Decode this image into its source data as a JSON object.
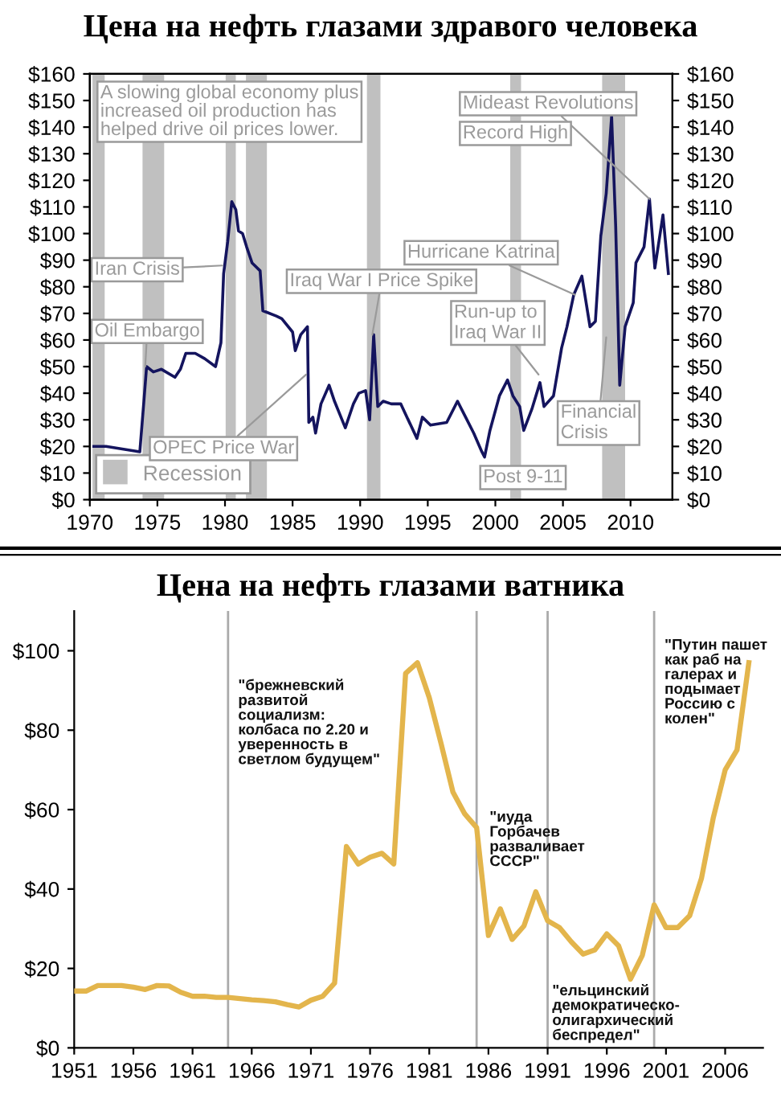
{
  "chart_data": [
    {
      "type": "line",
      "title": "Цена на нефть глазами здравого человека",
      "xlim": [
        1970,
        2013.1
      ],
      "xticks": [
        1970,
        1975,
        1980,
        1985,
        1990,
        1995,
        2000,
        2005,
        2010
      ],
      "ylim": [
        0,
        160
      ],
      "yticks": [
        {
          "value": 0,
          "label": "$0"
        },
        {
          "value": 10,
          "label": "$10"
        },
        {
          "value": 20,
          "label": "$20"
        },
        {
          "value": 30,
          "label": "$30"
        },
        {
          "value": 40,
          "label": "$40"
        },
        {
          "value": 50,
          "label": "$50"
        },
        {
          "value": 60,
          "label": "$60"
        },
        {
          "value": 70,
          "label": "$70"
        },
        {
          "value": 80,
          "label": "$80"
        },
        {
          "value": 90,
          "label": "$90"
        },
        {
          "value": 100,
          "label": "$100"
        },
        {
          "value": 110,
          "label": "$110"
        },
        {
          "value": 120,
          "label": "$120"
        },
        {
          "value": 130,
          "label": "$130"
        },
        {
          "value": 140,
          "label": "$140"
        },
        {
          "value": 150,
          "label": "$150"
        },
        {
          "value": 160,
          "label": "$160"
        }
      ],
      "y2lim": [
        0,
        160
      ],
      "y2ticks": [
        {
          "value": 0,
          "label": "$0"
        },
        {
          "value": 10,
          "label": "$10"
        },
        {
          "value": 20,
          "label": "$20"
        },
        {
          "value": 30,
          "label": "$30"
        },
        {
          "value": 40,
          "label": "$40"
        },
        {
          "value": 50,
          "label": "$50"
        },
        {
          "value": 60,
          "label": "$60"
        },
        {
          "value": 70,
          "label": "$70"
        },
        {
          "value": 80,
          "label": "$80"
        },
        {
          "value": 90,
          "label": "$90"
        },
        {
          "value": 100,
          "label": "$100"
        },
        {
          "value": 110,
          "label": "$110"
        },
        {
          "value": 120,
          "label": "$120"
        },
        {
          "value": 130,
          "label": "$130"
        },
        {
          "value": 140,
          "label": "$140"
        },
        {
          "value": 150,
          "label": "$150"
        },
        {
          "value": 160,
          "label": "$160"
        }
      ],
      "series": [
        {
          "color": "#14145e",
          "x": [
            1970.3,
            1971.2,
            1973.7,
            1974.0,
            1974.2,
            1974.7,
            1975.3,
            1976.3,
            1976.7,
            1977.1,
            1977.8,
            1978.5,
            1979.3,
            1979.7,
            1979.9,
            1980.2,
            1980.5,
            1980.8,
            1981.0,
            1981.3,
            1981.6,
            1982.0,
            1982.6,
            1982.8,
            1983.8,
            1984.2,
            1985.0,
            1985.2,
            1985.6,
            1986.1,
            1986.2,
            1986.5,
            1986.7,
            1987.1,
            1987.7,
            1988.1,
            1988.9,
            1989.5,
            1989.9,
            1990.4,
            1990.7,
            1991.0,
            1991.3,
            1991.7,
            1992.3,
            1993.0,
            1994.2,
            1994.6,
            1995.2,
            1996.4,
            1997.2,
            1997.8,
            1998.4,
            1999.0,
            1999.2,
            1999.6,
            2000.3,
            2000.9,
            2001.3,
            2001.8,
            2002.1,
            2002.7,
            2003.3,
            2003.6,
            2004.3,
            2004.9,
            2005.3,
            2005.8,
            2006.4,
            2007.0,
            2007.4,
            2007.8,
            2008.2,
            2008.6,
            2008.9,
            2009.2,
            2009.6,
            2010.2,
            2010.4,
            2011.0,
            2011.4,
            2011.8,
            2012.4,
            2012.8
          ],
          "values": [
            20,
            20,
            18,
            37,
            50,
            48,
            49,
            46,
            49,
            55,
            55,
            53,
            50,
            59,
            85,
            97,
            112,
            109,
            101,
            100,
            95,
            89,
            86,
            71,
            69,
            68,
            63,
            56,
            62,
            65,
            29,
            31,
            25,
            36,
            43,
            37,
            27,
            36,
            40,
            41,
            30,
            62,
            35,
            37,
            36,
            36,
            23,
            31,
            28,
            29,
            37,
            31,
            25,
            18,
            16,
            26,
            39,
            45,
            39,
            35,
            26,
            34,
            44,
            35,
            39,
            57,
            65,
            77,
            84,
            65,
            67,
            99,
            115,
            144,
            103,
            43,
            65,
            74,
            89,
            95,
            113,
            87,
            107,
            85
          ]
        }
      ],
      "bands": [
        {
          "axis": "x",
          "from": 1970.2,
          "to": 1971.1,
          "color": "#c0c0c0",
          "label": "Recession"
        },
        {
          "axis": "x",
          "from": 1973.9,
          "to": 1975.5,
          "color": "#c0c0c0"
        },
        {
          "axis": "x",
          "from": 1980.05,
          "to": 1980.8,
          "color": "#c0c0c0"
        },
        {
          "axis": "x",
          "from": 1981.55,
          "to": 1983.1,
          "color": "#c0c0c0"
        },
        {
          "axis": "x",
          "from": 1990.5,
          "to": 1991.5,
          "color": "#c0c0c0"
        },
        {
          "axis": "x",
          "from": 2001.1,
          "to": 2001.9,
          "color": "#c0c0c0"
        },
        {
          "axis": "x",
          "from": 2007.9,
          "to": 2009.6,
          "color": "#c0c0c0"
        }
      ],
      "legend": "bottom left",
      "annotations": [
        "A slowing global economy plus\nincreased oil production has\nhelped drive oil prices lower.",
        {
          "text": "Iran Crisis",
          "x": 1979.8,
          "y": 88
        },
        {
          "text": "Oil Embargo",
          "x": 1974.1,
          "y": 50
        },
        {
          "text": "OPEC Price War",
          "x": 1986.0,
          "y": 47
        },
        {
          "text": "Iraq War I Price Spike",
          "x": 1990.9,
          "y": 62
        },
        {
          "text": "Hurricane Katrina",
          "x": 2005.9,
          "y": 77
        },
        {
          "text": "Run-up to\nIraq War II",
          "x": 2003.2,
          "y": 47
        },
        {
          "text": "Financial\nCrisis",
          "x": 2008.2,
          "y": 61
        },
        "Post 9-11",
        {
          "text": "Mideast Revolutions",
          "x": 2011.4,
          "y": 113
        },
        "Record High"
      ]
    },
    {
      "type": "line",
      "title": "Цена на нефть глазами ватника",
      "xlim": [
        1951,
        2009.2
      ],
      "xticks": [
        1951,
        1956,
        1961,
        1966,
        1971,
        1976,
        1981,
        1986,
        1991,
        1996,
        2001,
        2006
      ],
      "ylim": [
        0,
        110
      ],
      "yticks": [
        {
          "value": 0,
          "label": "$0"
        },
        {
          "value": 20,
          "label": "$20"
        },
        {
          "value": 40,
          "label": "$40"
        },
        {
          "value": 60,
          "label": "$60"
        },
        {
          "value": 80,
          "label": "$80"
        },
        {
          "value": 100,
          "label": "$100"
        }
      ],
      "series": [
        {
          "color": "#e3b54c",
          "x": [
            1951,
            1952,
            1953,
            1954,
            1955,
            1956,
            1957,
            1958,
            1959,
            1960,
            1961,
            1962,
            1963,
            1964,
            1965,
            1966,
            1967,
            1968,
            1969,
            1970,
            1971,
            1972,
            1973,
            1974,
            1975,
            1976,
            1977,
            1978,
            1979,
            1980,
            1981,
            1982,
            1983,
            1984,
            1985,
            1986,
            1987,
            1988,
            1989,
            1990,
            1991,
            1992,
            1993,
            1994,
            1995,
            1996,
            1997,
            1998,
            1999,
            2000,
            2001,
            2002,
            2003,
            2004,
            2005,
            2006,
            2007,
            2008
          ],
          "values": [
            14.3,
            14.3,
            15.7,
            15.7,
            15.7,
            15.3,
            14.7,
            15.7,
            15.6,
            14,
            13,
            13,
            12.7,
            12.7,
            12.4,
            12.1,
            11.9,
            11.6,
            10.9,
            10.3,
            12,
            13,
            16.3,
            50.7,
            46.3,
            48,
            49,
            46.3,
            94.3,
            97,
            88.2,
            76.6,
            64.4,
            58.9,
            55.5,
            28.3,
            35,
            27.3,
            30.7,
            39.3,
            32,
            30.3,
            26.7,
            23.6,
            24.7,
            28.7,
            25.7,
            17.3,
            23.3,
            36,
            30.3,
            30.3,
            33.3,
            42.7,
            58,
            70,
            75,
            97
          ]
        }
      ],
      "ref_lines": [
        {
          "axis": "x",
          "value": 1964,
          "color": "#aaaaaa"
        },
        {
          "axis": "x",
          "value": 1985,
          "color": "#aaaaaa"
        },
        {
          "axis": "x",
          "value": 1991,
          "color": "#aaaaaa"
        },
        {
          "axis": "x",
          "value": 2000,
          "color": "#aaaaaa"
        }
      ],
      "annotations": [
        "\"брежневский\nразвитой\nсоциализм:\nколбаса по 2.20 и\nуверенность в\nсветлом будущем\"",
        "\"иуда\nГорбачев\nразваливает\nСССР\"",
        "\"ельцинский\nдемократическо-\nолигархический\nбеспредел\"",
        "\"Путин пашет\nкак раб на\nгалерах и\nподымает\nРоссию с\nколен\""
      ]
    }
  ]
}
